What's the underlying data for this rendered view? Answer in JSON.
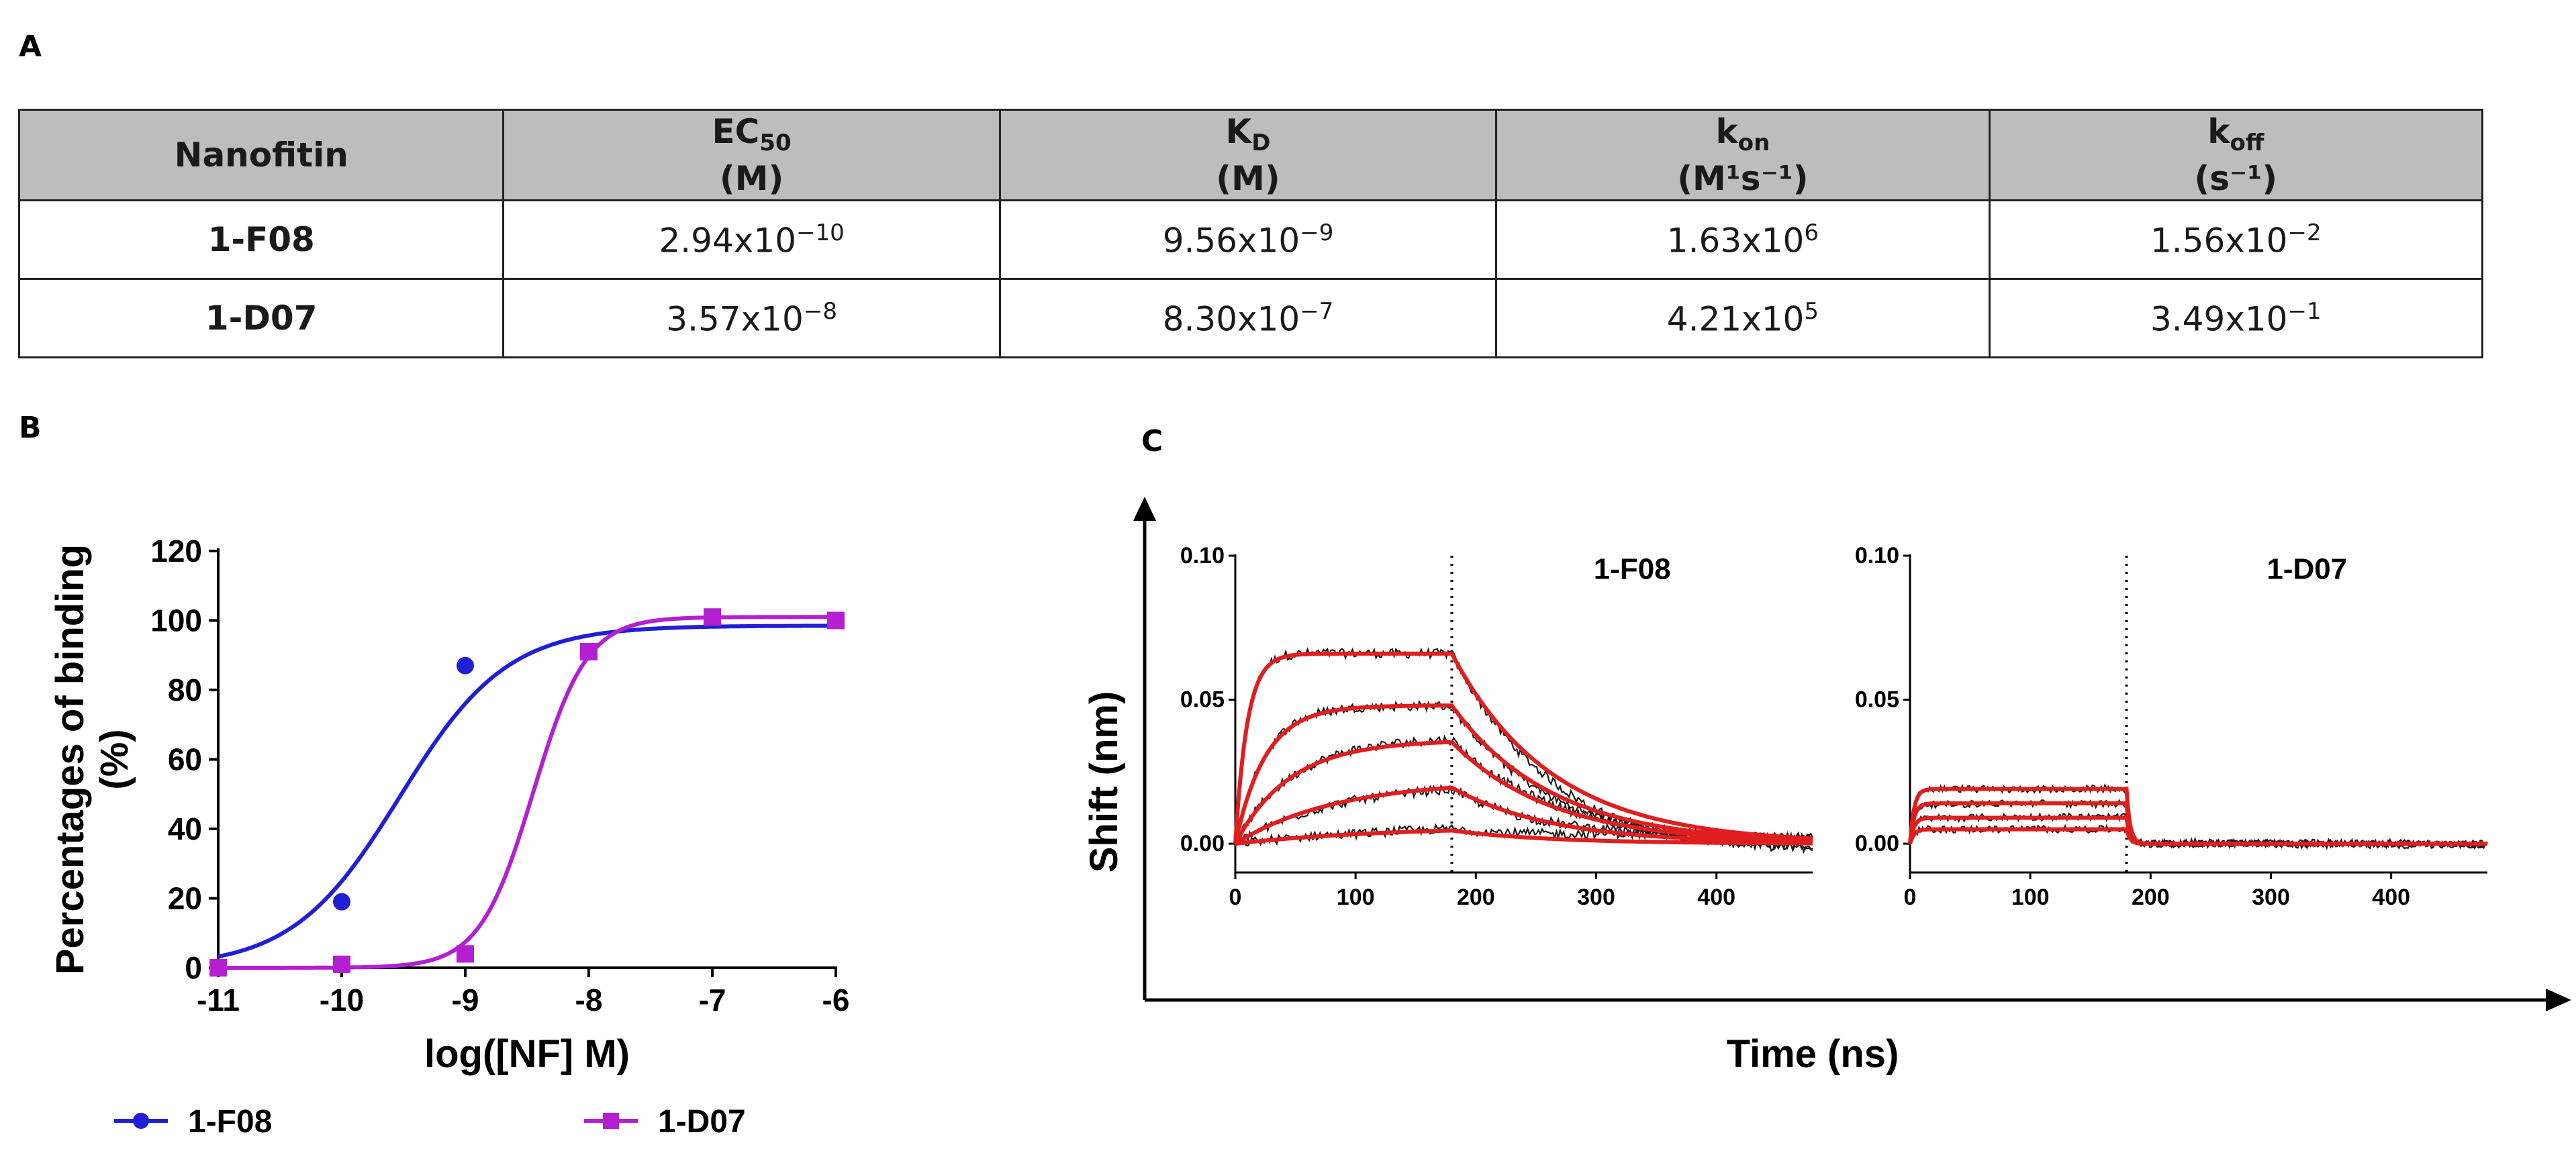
{
  "panels": {
    "a": "A",
    "b": "B",
    "c": "C"
  },
  "table": {
    "columns": [
      {
        "base": "Nanofitin",
        "sub": "",
        "sup": "",
        "unit": ""
      },
      {
        "base": "EC",
        "sub": "50",
        "sup": "",
        "unit": "(M)"
      },
      {
        "base": "K",
        "sub": "D",
        "sup": "",
        "unit": "(M)"
      },
      {
        "base": "k",
        "sub": "on",
        "sup": "",
        "unit": "(M¹s⁻¹)"
      },
      {
        "base": "k",
        "sub": "off",
        "sup": "",
        "unit": "(s⁻¹)"
      }
    ],
    "rows": [
      {
        "name": "1-F08",
        "ec50": {
          "mantissa": "2.94x10",
          "exp": "−10"
        },
        "kd": {
          "mantissa": "9.56x10",
          "exp": "−9"
        },
        "kon": {
          "mantissa": "1.63x10",
          "exp": "6"
        },
        "koff": {
          "mantissa": "1.56x10",
          "exp": "−2"
        }
      },
      {
        "name": "1-D07",
        "ec50": {
          "mantissa": "3.57x10",
          "exp": "−8"
        },
        "kd": {
          "mantissa": "8.30x10",
          "exp": "−7"
        },
        "kon": {
          "mantissa": "4.21x10",
          "exp": "5"
        },
        "koff": {
          "mantissa": "3.49x10",
          "exp": "−1"
        }
      }
    ]
  },
  "chart_data": [
    {
      "type": "scatter",
      "panel": "B",
      "title": "",
      "xlabel": "log([NF] M)",
      "ylabel": "Percentages of binding (%)",
      "xlim": [
        -11,
        -6
      ],
      "ylim": [
        0,
        120
      ],
      "xticks": [
        -11,
        -10,
        -9,
        -8,
        -7,
        -6
      ],
      "yticks": [
        0,
        20,
        40,
        60,
        80,
        100,
        120
      ],
      "legend_position": "bottom",
      "colors": {
        "1-F08": "#1f1fd6",
        "1-D07": "#b31fd1"
      },
      "series": [
        {
          "name": "1-F08",
          "marker": "circle",
          "x": [
            -11,
            -10,
            -9,
            -8,
            -7,
            -6
          ],
          "y": [
            0,
            19,
            87,
            91,
            101,
            100
          ],
          "fit": {
            "model": "sigmoid",
            "bottom": 0,
            "top": 98.5,
            "logEC50": -9.53,
            "hill": 1.0
          }
        },
        {
          "name": "1-D07",
          "marker": "square",
          "x": [
            -11,
            -10,
            -9,
            -8,
            -7,
            -6
          ],
          "y": [
            0,
            1,
            4,
            91,
            101,
            100
          ],
          "fit": {
            "model": "sigmoid",
            "bottom": 0,
            "top": 101,
            "logEC50": -8.45,
            "hill": 2.0
          }
        }
      ]
    },
    {
      "type": "line",
      "panel": "C",
      "subtitle": "1-F08",
      "xlabel": "Time (ns)",
      "ylabel": "Shift (nm)",
      "xlim": [
        0,
        480
      ],
      "ylim": [
        -0.01,
        0.1
      ],
      "xticks": [
        0,
        100,
        200,
        300,
        400
      ],
      "yticks": [
        0.0,
        0.05,
        0.1
      ],
      "ytick_labels": [
        "0.00",
        "0.05",
        "0.10"
      ],
      "association_end": 180,
      "colors": {
        "fit": "#e01e1e",
        "raw": "#1a1a1a"
      },
      "series": [
        {
          "name": "trace-1",
          "plateau": 0.066,
          "k_assoc": 0.1,
          "k_dissoc": 0.012
        },
        {
          "name": "trace-2",
          "plateau": 0.048,
          "k_assoc": 0.04,
          "k_dissoc": 0.012
        },
        {
          "name": "trace-3",
          "plateau": 0.036,
          "k_assoc": 0.022,
          "k_dissoc": 0.012
        },
        {
          "name": "trace-4",
          "plateau": 0.022,
          "k_assoc": 0.012,
          "k_dissoc": 0.012
        },
        {
          "name": "trace-5",
          "plateau": 0.006,
          "k_assoc": 0.008,
          "k_dissoc": 0.012
        }
      ]
    },
    {
      "type": "line",
      "panel": "C",
      "subtitle": "1-D07",
      "xlabel": "Time (ns)",
      "ylabel": "Shift (nm)",
      "xlim": [
        0,
        480
      ],
      "ylim": [
        -0.01,
        0.1
      ],
      "xticks": [
        0,
        100,
        200,
        300,
        400
      ],
      "yticks": [
        0.0,
        0.05,
        0.1
      ],
      "ytick_labels": [
        "0.00",
        "0.05",
        "0.10"
      ],
      "association_end": 180,
      "colors": {
        "fit": "#e01e1e",
        "raw": "#1a1a1a"
      },
      "series": [
        {
          "name": "trace-1",
          "plateau": 0.019,
          "k_assoc": 0.3,
          "k_dissoc": 0.35
        },
        {
          "name": "trace-2",
          "plateau": 0.014,
          "k_assoc": 0.3,
          "k_dissoc": 0.35
        },
        {
          "name": "trace-3",
          "plateau": 0.009,
          "k_assoc": 0.3,
          "k_dissoc": 0.35
        },
        {
          "name": "trace-4",
          "plateau": 0.005,
          "k_assoc": 0.3,
          "k_dissoc": 0.35
        }
      ]
    }
  ]
}
